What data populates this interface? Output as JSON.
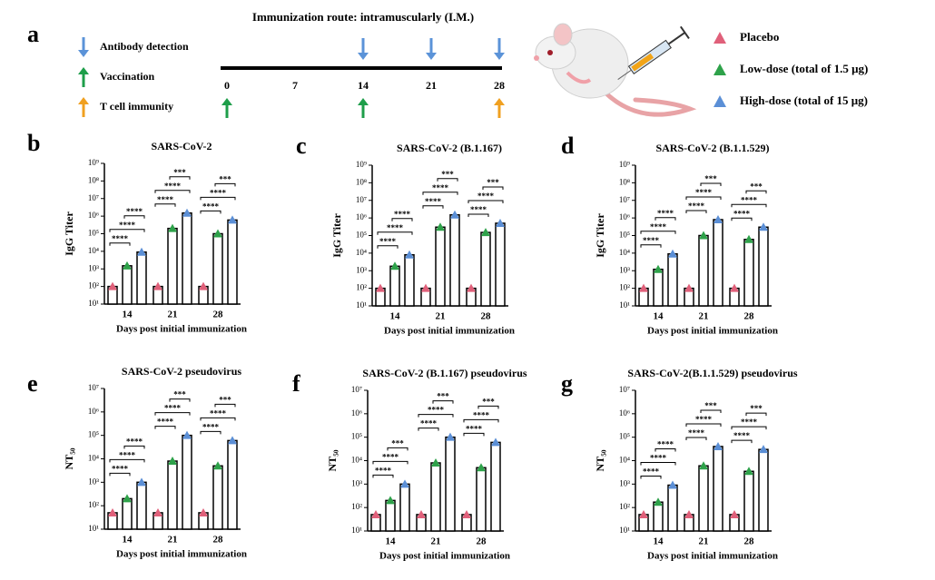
{
  "panel_labels": [
    "a",
    "b",
    "c",
    "d",
    "e",
    "f",
    "g"
  ],
  "schematic": {
    "title": "Immunization route: intramuscularly (I.M.)",
    "days": [
      0,
      7,
      14,
      21,
      28
    ],
    "events": [
      {
        "name": "Antibody detection",
        "color": "#5b93d8",
        "direction": "down",
        "at": [
          14,
          21,
          28
        ]
      },
      {
        "name": "Vaccination",
        "color": "#1e9e4a",
        "direction": "up",
        "at": [
          0,
          14
        ]
      },
      {
        "name": "T cell immunity",
        "color": "#f0a020",
        "direction": "up",
        "at": [
          28
        ]
      }
    ]
  },
  "legend": [
    {
      "name": "Placebo",
      "color": "#e0607a"
    },
    {
      "name": "Low-dose (total of 1.5 μg)",
      "color": "#2ea24a"
    },
    {
      "name": "High-dose (total of 15 μg)",
      "color": "#5b8fd6"
    }
  ],
  "chart_data": [
    {
      "type": "bar",
      "title": "SARS-CoV-2",
      "xlabel": "Days post initial immunization",
      "ylabel": "IgG Titer",
      "categories": [
        "14",
        "21",
        "28"
      ],
      "log_scale": true,
      "ylim": [
        10,
        1000000000
      ],
      "yticks": [
        {
          "value": 10,
          "label": "10¹"
        },
        {
          "value": 100,
          "label": "10²"
        },
        {
          "value": 1000,
          "label": "10³"
        },
        {
          "value": 10000,
          "label": "10⁴"
        },
        {
          "value": 100000,
          "label": "10⁵"
        },
        {
          "value": 1000000,
          "label": "10⁶"
        },
        {
          "value": 10000000,
          "label": "10⁷"
        },
        {
          "value": 100000000,
          "label": "10⁸"
        },
        {
          "value": 1000000000,
          "label": "10⁹"
        }
      ],
      "series": [
        {
          "values": [
            100,
            100,
            100
          ]
        },
        {
          "values": [
            1500,
            200000,
            100000
          ]
        },
        {
          "values": [
            9000,
            1500000,
            600000
          ]
        }
      ],
      "significance": [
        [
          "****",
          "****",
          "****"
        ],
        [
          "****",
          "****",
          "***"
        ],
        [
          "****",
          "****",
          "***"
        ]
      ]
    },
    {
      "type": "bar",
      "title": "SARS-CoV-2 (B.1.167)",
      "xlabel": "Days post initial immunization",
      "ylabel": "IgG Titer",
      "categories": [
        "14",
        "21",
        "28"
      ],
      "log_scale": true,
      "ylim": [
        10,
        1000000000
      ],
      "yticks": [
        {
          "value": 10,
          "label": "10¹"
        },
        {
          "value": 100,
          "label": "10²"
        },
        {
          "value": 1000,
          "label": "10³"
        },
        {
          "value": 10000,
          "label": "10⁴"
        },
        {
          "value": 100000,
          "label": "10⁵"
        },
        {
          "value": 1000000,
          "label": "10⁶"
        },
        {
          "value": 10000000,
          "label": "10⁷"
        },
        {
          "value": 100000000,
          "label": "10⁸"
        },
        {
          "value": 1000000000,
          "label": "10⁹"
        }
      ],
      "series": [
        {
          "values": [
            100,
            100,
            100
          ]
        },
        {
          "values": [
            1800,
            300000,
            150000
          ]
        },
        {
          "values": [
            8000,
            1500000,
            500000
          ]
        }
      ],
      "significance": [
        [
          "****",
          "****",
          "****"
        ],
        [
          "****",
          "****",
          "***"
        ],
        [
          "****",
          "****",
          "***"
        ]
      ]
    },
    {
      "type": "bar",
      "title": "SARS-CoV-2 (B.1.1.529)",
      "xlabel": "Days post initial immunization",
      "ylabel": "IgG Titer",
      "categories": [
        "14",
        "21",
        "28"
      ],
      "log_scale": true,
      "ylim": [
        10,
        1000000000
      ],
      "yticks": [
        {
          "value": 10,
          "label": "10¹"
        },
        {
          "value": 100,
          "label": "10²"
        },
        {
          "value": 1000,
          "label": "10³"
        },
        {
          "value": 10000,
          "label": "10⁴"
        },
        {
          "value": 100000,
          "label": "10⁵"
        },
        {
          "value": 1000000,
          "label": "10⁶"
        },
        {
          "value": 10000000,
          "label": "10⁷"
        },
        {
          "value": 100000000,
          "label": "10⁸"
        },
        {
          "value": 1000000000,
          "label": "10⁹"
        }
      ],
      "series": [
        {
          "values": [
            100,
            100,
            100
          ]
        },
        {
          "values": [
            1200,
            100000,
            60000
          ]
        },
        {
          "values": [
            9000,
            800000,
            300000
          ]
        }
      ],
      "significance": [
        [
          "****",
          "****",
          "****"
        ],
        [
          "****",
          "****",
          "***"
        ],
        [
          "****",
          "****",
          "***"
        ]
      ]
    },
    {
      "type": "bar",
      "title": "SARS-CoV-2 pseudovirus",
      "xlabel": "Days post initial immunization",
      "ylabel": "NT₅₀",
      "categories": [
        "14",
        "21",
        "28"
      ],
      "log_scale": true,
      "ylim": [
        10,
        10000000
      ],
      "yticks": [
        {
          "value": 10,
          "label": "10¹"
        },
        {
          "value": 100,
          "label": "10²"
        },
        {
          "value": 1000,
          "label": "10³"
        },
        {
          "value": 10000,
          "label": "10⁴"
        },
        {
          "value": 100000,
          "label": "10⁵"
        },
        {
          "value": 1000000,
          "label": "10⁶"
        },
        {
          "value": 10000000,
          "label": "10⁷"
        }
      ],
      "series": [
        {
          "values": [
            50,
            50,
            50
          ]
        },
        {
          "values": [
            200,
            8000,
            5000
          ]
        },
        {
          "values": [
            1000,
            100000,
            60000
          ]
        }
      ],
      "significance": [
        [
          "****",
          "****",
          "****"
        ],
        [
          "****",
          "****",
          "***"
        ],
        [
          "****",
          "****",
          "***"
        ]
      ]
    },
    {
      "type": "bar",
      "title": "SARS-CoV-2 (B.1.167) pseudovirus",
      "xlabel": "Days post initial immunization",
      "ylabel": "NT₅₀",
      "categories": [
        "14",
        "21",
        "28"
      ],
      "log_scale": true,
      "ylim": [
        10,
        10000000
      ],
      "yticks": [
        {
          "value": 10,
          "label": "10¹"
        },
        {
          "value": 100,
          "label": "10²"
        },
        {
          "value": 1000,
          "label": "10³"
        },
        {
          "value": 10000,
          "label": "10⁴"
        },
        {
          "value": 100000,
          "label": "10⁵"
        },
        {
          "value": 1000000,
          "label": "10⁶"
        },
        {
          "value": 10000000,
          "label": "10⁷"
        }
      ],
      "series": [
        {
          "values": [
            50,
            50,
            50
          ]
        },
        {
          "values": [
            200,
            8000,
            5000
          ]
        },
        {
          "values": [
            1000,
            100000,
            60000
          ]
        }
      ],
      "significance": [
        [
          "****",
          "****",
          "***"
        ],
        [
          "****",
          "****",
          "***"
        ],
        [
          "****",
          "****",
          "***"
        ]
      ]
    },
    {
      "type": "bar",
      "title": "SARS-CoV-2(B.1.1.529) pseudovirus",
      "xlabel": "Days post initial immunization",
      "ylabel": "NT₅₀",
      "categories": [
        "14",
        "21",
        "28"
      ],
      "log_scale": true,
      "ylim": [
        10,
        10000000
      ],
      "yticks": [
        {
          "value": 10,
          "label": "10¹"
        },
        {
          "value": 100,
          "label": "10²"
        },
        {
          "value": 1000,
          "label": "10³"
        },
        {
          "value": 10000,
          "label": "10⁴"
        },
        {
          "value": 100000,
          "label": "10⁵"
        },
        {
          "value": 1000000,
          "label": "10⁶"
        },
        {
          "value": 10000000,
          "label": "10⁷"
        }
      ],
      "series": [
        {
          "values": [
            50,
            50,
            50
          ]
        },
        {
          "values": [
            170,
            6000,
            3500
          ]
        },
        {
          "values": [
            900,
            40000,
            30000
          ]
        }
      ],
      "significance": [
        [
          "****",
          "****",
          "****"
        ],
        [
          "****",
          "****",
          "***"
        ],
        [
          "****",
          "****",
          "***"
        ]
      ]
    }
  ]
}
